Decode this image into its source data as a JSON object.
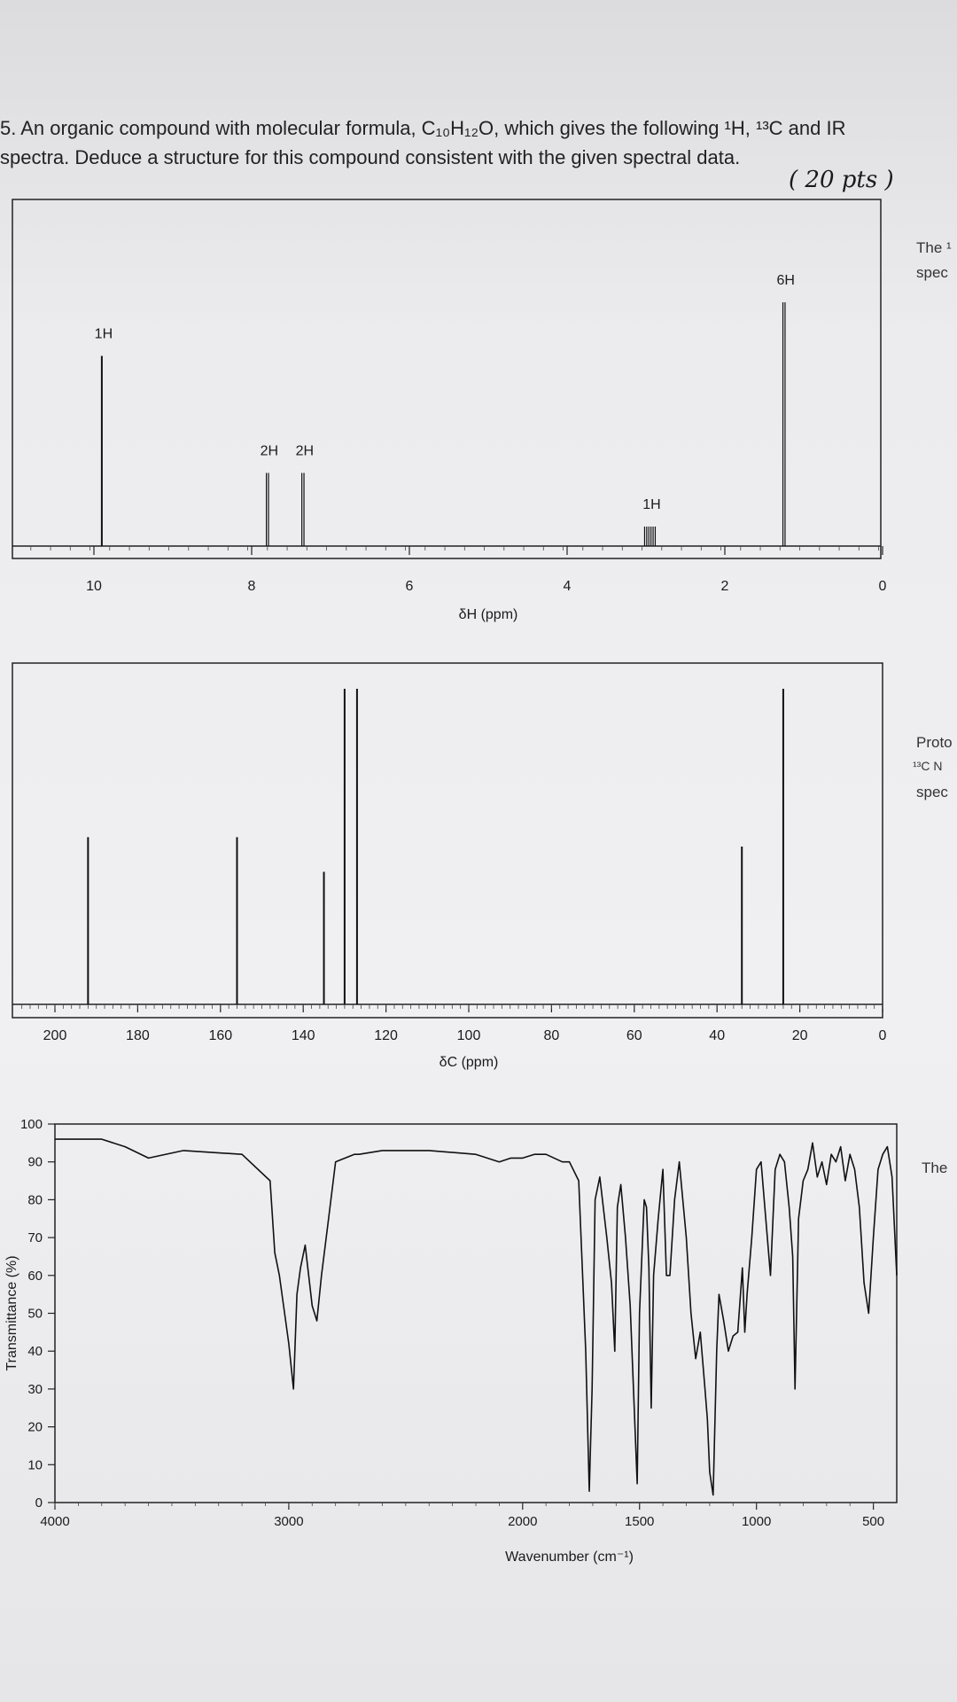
{
  "question": {
    "line1": "5. An organic compound with molecular formula, C₁₀H₁₂O, which gives the following ¹H, ¹³C and IR",
    "line2": "spectra. Deduce a structure for this compound consistent with the given spectral data.",
    "points": "( 20 pts )"
  },
  "side_notes": {
    "h_note_1": "The ¹",
    "h_note_2": "spec",
    "c_note_1": "Proto",
    "c_note_2": "¹³C N",
    "c_note_3": "spec",
    "ir_note": "The"
  },
  "chart_data": [
    {
      "type": "line",
      "name": "1H NMR spectrum",
      "xlabel": "δH (ppm)",
      "xlim": [
        11,
        0
      ],
      "x_ticks": [
        10,
        8,
        6,
        4,
        2,
        0
      ],
      "peaks": [
        {
          "x": 9.9,
          "height": 0.78,
          "label": "1H",
          "multiplicity": "singlet"
        },
        {
          "x": 7.8,
          "height": 0.3,
          "label": "2H",
          "multiplicity": "doublet"
        },
        {
          "x": 7.35,
          "height": 0.3,
          "label": "2H",
          "multiplicity": "doublet"
        },
        {
          "x": 2.95,
          "height": 0.08,
          "label": "1H",
          "multiplicity": "septet"
        },
        {
          "x": 1.25,
          "height": 1.0,
          "label": "6H",
          "multiplicity": "doublet"
        }
      ]
    },
    {
      "type": "line",
      "name": "13C NMR spectrum",
      "xlabel": "δC (ppm)",
      "xlim": [
        210,
        0
      ],
      "x_ticks": [
        200,
        180,
        160,
        140,
        120,
        100,
        80,
        60,
        40,
        20,
        0
      ],
      "peaks": [
        {
          "x": 192,
          "height": 0.53
        },
        {
          "x": 156,
          "height": 0.53
        },
        {
          "x": 135,
          "height": 0.42
        },
        {
          "x": 130,
          "height": 1.0
        },
        {
          "x": 127,
          "height": 1.0
        },
        {
          "x": 34,
          "height": 0.5
        },
        {
          "x": 24,
          "height": 1.0
        }
      ]
    },
    {
      "type": "line",
      "name": "IR spectrum",
      "xlabel": "Wavenumber (cm⁻¹)",
      "ylabel": "Transmittance (%)",
      "xlim": [
        4000,
        400
      ],
      "ylim": [
        0,
        100
      ],
      "x_ticks": [
        4000,
        3000,
        2000,
        1500,
        1000,
        500
      ],
      "y_ticks": [
        0,
        10,
        20,
        30,
        40,
        50,
        60,
        70,
        80,
        90,
        100
      ],
      "x": [
        4000,
        3800,
        3700,
        3600,
        3450,
        3200,
        3080,
        3060,
        3040,
        3000,
        2980,
        2965,
        2950,
        2930,
        2900,
        2880,
        2860,
        2830,
        2800,
        2720,
        2700,
        2600,
        2400,
        2200,
        2100,
        2050,
        2000,
        1950,
        1900,
        1830,
        1800,
        1760,
        1730,
        1715,
        1703,
        1690,
        1670,
        1640,
        1620,
        1606,
        1595,
        1580,
        1560,
        1540,
        1510,
        1500,
        1480,
        1470,
        1460,
        1450,
        1440,
        1420,
        1400,
        1385,
        1370,
        1350,
        1330,
        1300,
        1280,
        1260,
        1240,
        1220,
        1210,
        1200,
        1185,
        1170,
        1160,
        1140,
        1120,
        1100,
        1080,
        1060,
        1050,
        1040,
        1020,
        1000,
        980,
        960,
        940,
        920,
        900,
        880,
        860,
        845,
        835,
        820,
        800,
        780,
        760,
        740,
        720,
        700,
        680,
        660,
        640,
        620,
        600,
        580,
        560,
        540,
        520,
        500,
        480,
        460,
        440,
        420,
        400
      ],
      "y": [
        96,
        96,
        94,
        91,
        93,
        92,
        85,
        66,
        60,
        42,
        30,
        55,
        62,
        68,
        52,
        48,
        60,
        75,
        90,
        92,
        92,
        93,
        93,
        92,
        90,
        91,
        91,
        92,
        92,
        90,
        90,
        85,
        40,
        3,
        30,
        80,
        86,
        70,
        58,
        40,
        78,
        84,
        70,
        52,
        5,
        50,
        80,
        78,
        62,
        25,
        60,
        75,
        88,
        60,
        60,
        80,
        90,
        70,
        50,
        38,
        45,
        30,
        22,
        8,
        2,
        40,
        55,
        48,
        40,
        44,
        45,
        62,
        45,
        55,
        70,
        88,
        90,
        75,
        60,
        88,
        92,
        90,
        78,
        65,
        30,
        75,
        85,
        88,
        95,
        86,
        90,
        84,
        92,
        90,
        94,
        85,
        92,
        88,
        78,
        58,
        50,
        70,
        88,
        92,
        94,
        86,
        60
      ]
    }
  ]
}
